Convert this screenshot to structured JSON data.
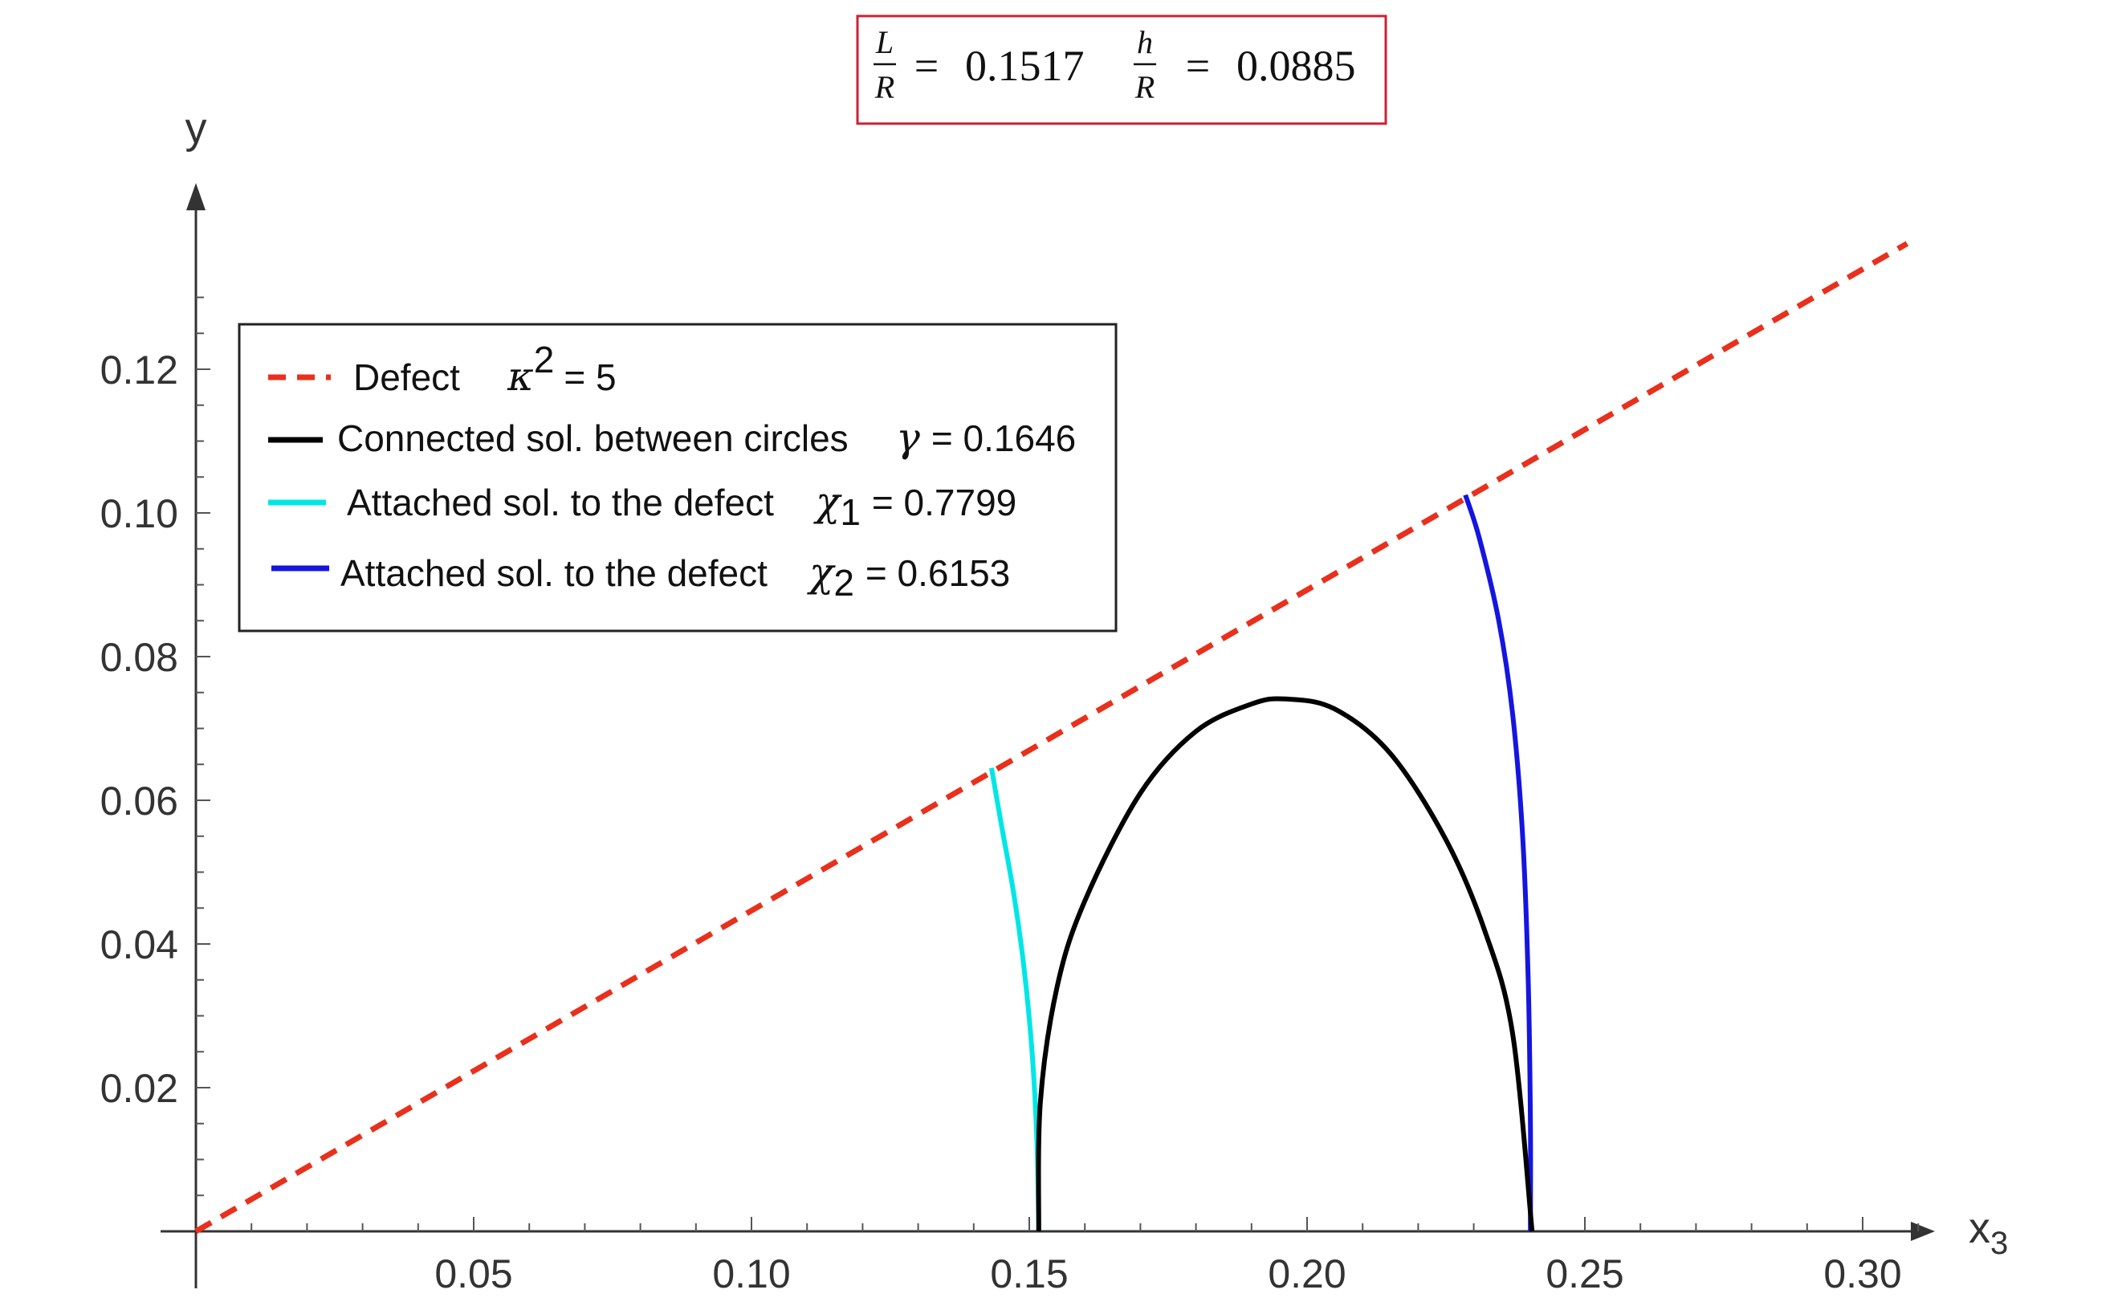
{
  "header": {
    "L_over_R": {
      "num": "L",
      "den": "R",
      "eq": "=",
      "value": "0.1517"
    },
    "h_over_R": {
      "num": "h",
      "den": "R",
      "eq": "=",
      "value": "0.0885"
    },
    "box_color": "#cc2233"
  },
  "chart_data": {
    "type": "line",
    "xlabel": "x",
    "xlabel_sub": "3",
    "ylabel": "y",
    "xlim": [
      0,
      0.315
    ],
    "ylim": [
      0,
      0.14
    ],
    "xticks": [
      {
        "value": 0.05,
        "label": "0.05"
      },
      {
        "value": 0.1,
        "label": "0.10"
      },
      {
        "value": 0.15,
        "label": "0.15"
      },
      {
        "value": 0.2,
        "label": "0.20"
      },
      {
        "value": 0.25,
        "label": "0.25"
      },
      {
        "value": 0.3,
        "label": "0.30"
      }
    ],
    "yticks": [
      {
        "value": 0.02,
        "label": "0.02"
      },
      {
        "value": 0.04,
        "label": "0.04"
      },
      {
        "value": 0.06,
        "label": "0.06"
      },
      {
        "value": 0.08,
        "label": "0.08"
      },
      {
        "value": 0.1,
        "label": "0.10"
      },
      {
        "value": 0.12,
        "label": "0.12"
      }
    ],
    "grid": false,
    "legend_position": "top-left",
    "series": [
      {
        "name": "Defect",
        "param_symbol": "κ",
        "param_sup": "2",
        "param_value": "= 5",
        "color": "#e8301c",
        "style": "dashed",
        "x": [
          0,
          0.308
        ],
        "y": [
          0,
          0.1375
        ]
      },
      {
        "name": "Connected sol. between circles",
        "param_symbol": "γ",
        "param_sup": "",
        "param_value": "= 0.1646",
        "color": "#000000",
        "style": "solid",
        "x": [
          0.1517,
          0.152,
          0.155,
          0.16,
          0.17,
          0.18,
          0.19,
          0.1962,
          0.205,
          0.215,
          0.225,
          0.232,
          0.237,
          0.2405
        ],
        "y": [
          0,
          0.018,
          0.034,
          0.046,
          0.061,
          0.0696,
          0.0734,
          0.0741,
          0.0727,
          0.0665,
          0.0545,
          0.0418,
          0.0275,
          0.0
        ]
      },
      {
        "name": "Attached sol. to the defect",
        "param_symbol": "χ",
        "param_sub": "1",
        "param_value": "= 0.7799",
        "color": "#00e6e6",
        "style": "solid",
        "x": [
          0.1517,
          0.1514,
          0.1505,
          0.149,
          0.1472,
          0.145,
          0.1432
        ],
        "y": [
          0,
          0.012,
          0.025,
          0.037,
          0.047,
          0.0565,
          0.0645
        ]
      },
      {
        "name": "Attached sol. to the defect",
        "param_symbol": "χ",
        "param_sub": "2",
        "param_value": "= 0.6153",
        "color": "#1515e0",
        "style": "solid",
        "x": [
          0.2402,
          0.2402,
          0.2398,
          0.2388,
          0.237,
          0.2345,
          0.231,
          0.2285
        ],
        "y": [
          0,
          0.015,
          0.035,
          0.055,
          0.072,
          0.085,
          0.0965,
          0.1025
        ]
      }
    ]
  }
}
